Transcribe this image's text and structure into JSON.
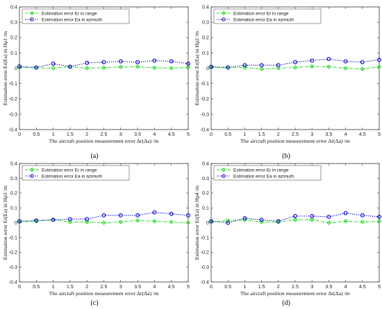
{
  "chart_data": [
    {
      "type": "line",
      "caption": "(a)",
      "x": [
        0,
        0.5,
        1,
        1.5,
        2,
        2.5,
        3,
        3.5,
        4,
        4.5,
        5
      ],
      "xticks": [
        "0",
        "0.5",
        "1",
        "1.5",
        "2",
        "2.5",
        "3",
        "3.5",
        "4",
        "4.5",
        "5"
      ],
      "yticks": [
        "-0.4",
        "-0.3",
        "-0.2",
        "-0.1",
        "0",
        "0.1",
        "0.2",
        "0.3",
        "0.4"
      ],
      "xlim": [
        0,
        5
      ],
      "ylim": [
        -0.4,
        0.4
      ],
      "xlabel": "The aircraft position measurement error Δr(Δa) /m",
      "ylabel": "Estimation error Er(Ea) in Hp1 /m",
      "legend_position": "top-left",
      "series": [
        {
          "name": "Estimation error Er in range",
          "color": "#22dd22",
          "marker": "diamond",
          "linestyle": "dash-dot",
          "values": [
            0.005,
            0.003,
            0.0,
            0.01,
            0.0,
            0.003,
            0.008,
            0.01,
            0.003,
            0.0,
            0.006
          ]
        },
        {
          "name": "Estimation error Ea in azimuth",
          "color": "#0000cc",
          "marker": "circle",
          "linestyle": "dotted",
          "values": [
            0.012,
            0.005,
            0.03,
            0.01,
            0.035,
            0.04,
            0.045,
            0.04,
            0.05,
            0.045,
            0.03
          ]
        }
      ]
    },
    {
      "type": "line",
      "caption": "(b)",
      "x": [
        0,
        0.5,
        1,
        1.5,
        2,
        2.5,
        3,
        3.5,
        4,
        4.5,
        5
      ],
      "xticks": [
        "0",
        "0.5",
        "1",
        "1.5",
        "2",
        "2.5",
        "3",
        "3.5",
        "4",
        "4.5",
        "5"
      ],
      "yticks": [
        "-0.4",
        "-0.3",
        "-0.2",
        "-0.1",
        "0",
        "0.1",
        "0.2",
        "0.3",
        "0.4"
      ],
      "xlim": [
        0,
        5
      ],
      "ylim": [
        -0.4,
        0.4
      ],
      "xlabel": "The aircraft position measurement error Δr(Δa) /m",
      "ylabel": "Estimation error Er(Ea) in Hp2 /m",
      "legend_position": "top-left",
      "series": [
        {
          "name": "Estimation error Er in range",
          "color": "#22dd22",
          "marker": "diamond",
          "linestyle": "dash-dot",
          "values": [
            0.005,
            0.003,
            0.005,
            -0.005,
            0.0,
            0.005,
            0.012,
            0.01,
            0.0,
            -0.005,
            0.01
          ]
        },
        {
          "name": "Estimation error Ea in azimuth",
          "color": "#0000cc",
          "marker": "circle",
          "linestyle": "dotted",
          "values": [
            0.01,
            0.005,
            0.02,
            0.02,
            0.02,
            0.04,
            0.05,
            0.06,
            0.045,
            0.04,
            0.055
          ]
        }
      ]
    },
    {
      "type": "line",
      "caption": "(c)",
      "x": [
        0,
        0.5,
        1,
        1.5,
        2,
        2.5,
        3,
        3.5,
        4,
        4.5,
        5
      ],
      "xticks": [
        "0",
        "0.5",
        "1",
        "1.5",
        "2",
        "2.5",
        "3",
        "3.5",
        "4",
        "4.5",
        "5"
      ],
      "yticks": [
        "-0.4",
        "-0.3",
        "-0.2",
        "-0.1",
        "0",
        "0.1",
        "0.2",
        "0.3",
        "0.4"
      ],
      "xlim": [
        0,
        5
      ],
      "ylim": [
        -0.4,
        0.4
      ],
      "xlabel": "The aircraft position measurement error Δr(Δa) /m",
      "ylabel": "Estimation error Er(Ea) in Hp3 /m",
      "legend_position": "top-left",
      "series": [
        {
          "name": "Estimation error Er in range",
          "color": "#22dd22",
          "marker": "diamond",
          "linestyle": "dash-dot",
          "values": [
            0.005,
            0.01,
            0.02,
            0.005,
            0.005,
            0.0,
            0.005,
            0.015,
            0.01,
            0.005,
            0.0
          ]
        },
        {
          "name": "Estimation error Ea in azimuth",
          "color": "#0000cc",
          "marker": "circle",
          "linestyle": "dotted",
          "values": [
            0.01,
            0.015,
            0.02,
            0.025,
            0.025,
            0.05,
            0.05,
            0.05,
            0.07,
            0.06,
            0.05
          ]
        }
      ]
    },
    {
      "type": "line",
      "caption": "(d)",
      "x": [
        0,
        0.5,
        1,
        1.5,
        2,
        2.5,
        3,
        3.5,
        4,
        4.5,
        5
      ],
      "xticks": [
        "0",
        "0.5",
        "1",
        "1.5",
        "2",
        "2.5",
        "3",
        "3.5",
        "4",
        "4.5",
        "5"
      ],
      "yticks": [
        "-0.4",
        "-0.3",
        "-0.2",
        "-0.1",
        "0",
        "0.1",
        "0.2",
        "0.3",
        "0.4"
      ],
      "xlim": [
        0,
        5
      ],
      "ylim": [
        -0.4,
        0.4
      ],
      "xlabel": "The aircraft position measurement error Δr(Δa) /m",
      "ylabel": "Estimation error Er(Ea) in Hp4 /m",
      "legend_position": "top-left",
      "series": [
        {
          "name": "Estimation error Er in range",
          "color": "#22dd22",
          "marker": "diamond",
          "linestyle": "dash-dot",
          "values": [
            0.005,
            0.015,
            0.02,
            0.005,
            0.005,
            0.02,
            0.02,
            0.0,
            0.01,
            0.005,
            0.01
          ]
        },
        {
          "name": "Estimation error Ea in azimuth",
          "color": "#0000cc",
          "marker": "circle",
          "linestyle": "dotted",
          "values": [
            0.01,
            0.0,
            0.03,
            0.02,
            0.01,
            0.045,
            0.045,
            0.04,
            0.065,
            0.05,
            0.04
          ]
        }
      ]
    }
  ]
}
